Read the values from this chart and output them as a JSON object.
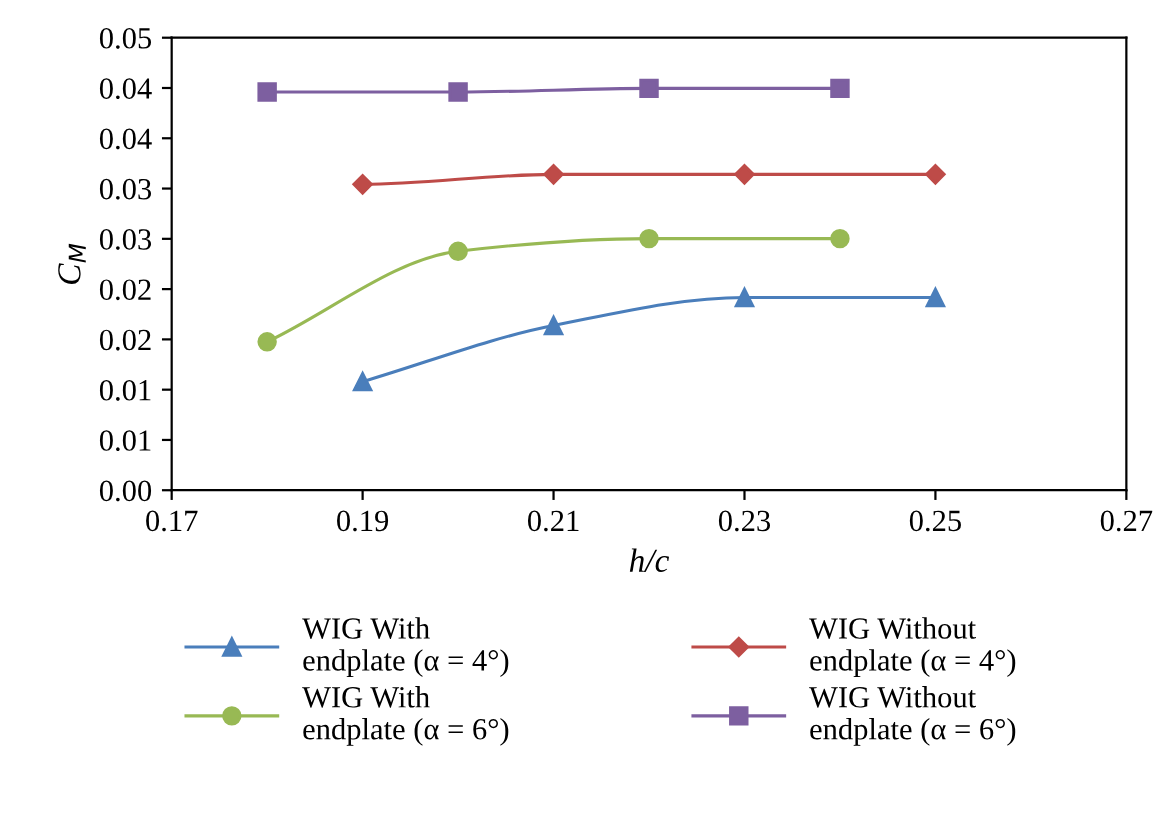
{
  "chart_data": {
    "type": "line",
    "xlabel": "h/c",
    "ylabel": "C$_{M}$",
    "xlim": [
      0.17,
      0.27
    ],
    "xticks": [
      {
        "value": 0.17,
        "label": "0.17"
      },
      {
        "value": 0.19,
        "label": "0.19"
      },
      {
        "value": 0.21,
        "label": "0.21"
      },
      {
        "value": 0.23,
        "label": "0.23"
      },
      {
        "value": 0.25,
        "label": "0.25"
      },
      {
        "value": 0.27,
        "label": "0.27"
      }
    ],
    "ylim": [
      0,
      0.05
    ],
    "yticks": [
      {
        "value": 0,
        "label": "0.00"
      },
      {
        "value": 0.005556,
        "label": "0.01"
      },
      {
        "value": 0.011111,
        "label": "0.01"
      },
      {
        "value": 0.016667,
        "label": "0.02"
      },
      {
        "value": 0.022222,
        "label": "0.02"
      },
      {
        "value": 0.027778,
        "label": "0.03"
      },
      {
        "value": 0.033333,
        "label": "0.03"
      },
      {
        "value": 0.038889,
        "label": "0.04"
      },
      {
        "value": 0.044444,
        "label": "0.04"
      },
      {
        "value": 0.05,
        "label": "0.05"
      }
    ],
    "grid": false,
    "legend": "bottom",
    "line_style": "solid",
    "series": [
      {
        "name": "WIG With\nendplate (α = 4°)",
        "color": "#4a7ebb",
        "marker": "triangle",
        "x": [
          0.19,
          0.21,
          0.23,
          0.25
        ],
        "values": [
          0.012,
          0.0182,
          0.0213,
          0.0213
        ]
      },
      {
        "name": "WIG Without\nendplate (α = 4°)",
        "color": "#be4b48",
        "marker": "diamond",
        "x": [
          0.19,
          0.21,
          0.23,
          0.25
        ],
        "values": [
          0.0338,
          0.0349,
          0.0349,
          0.0349
        ]
      },
      {
        "name": "WIG With\nendplate (α = 6°)",
        "color": "#98b954",
        "marker": "circle",
        "x": [
          0.18,
          0.2,
          0.22,
          0.24
        ],
        "values": [
          0.0164,
          0.0264,
          0.0278,
          0.0278
        ]
      },
      {
        "name": "WIG Without\nendplate (α = 6°)",
        "color": "#7d5fa0",
        "marker": "square",
        "x": [
          0.18,
          0.2,
          0.22,
          0.24
        ],
        "values": [
          0.044,
          0.044,
          0.0444,
          0.0444
        ]
      }
    ]
  }
}
